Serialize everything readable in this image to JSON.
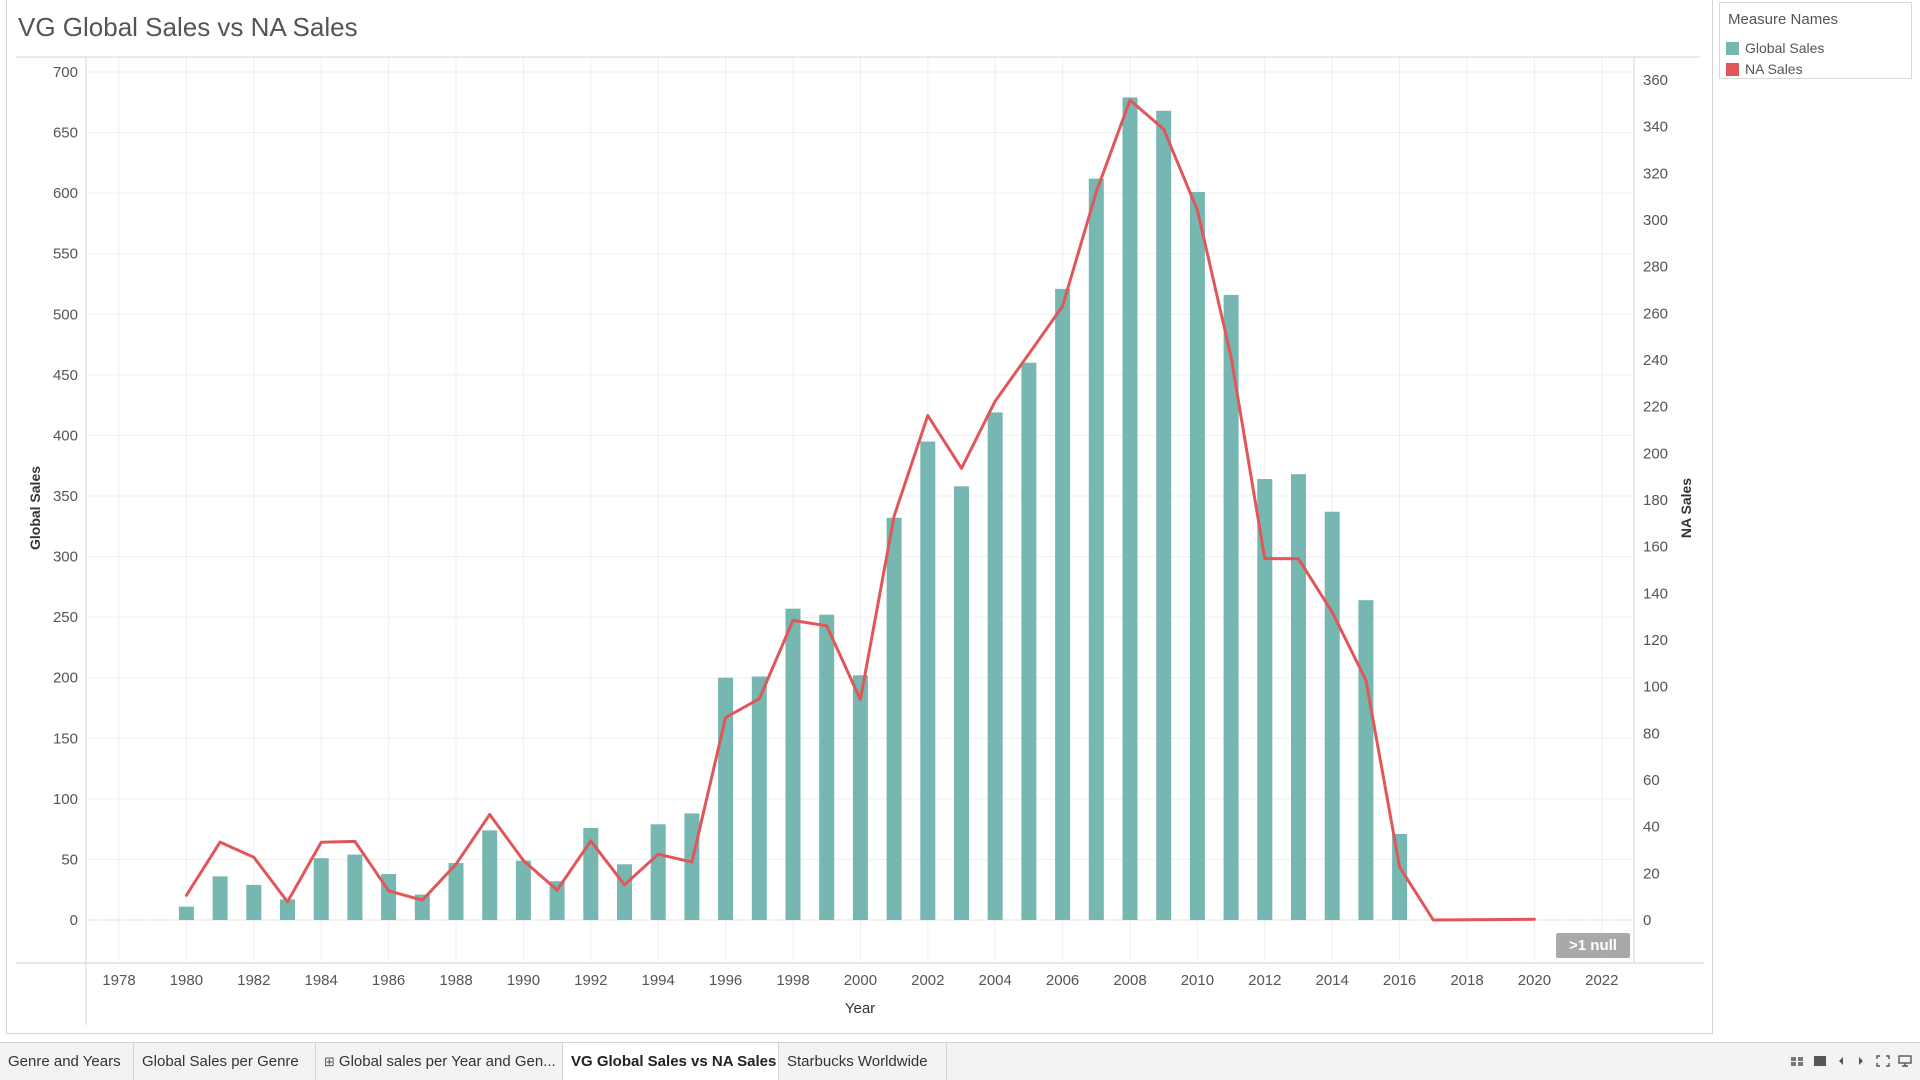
{
  "title": "VG Global Sales vs NA Sales",
  "legend": {
    "title": "Measure Names",
    "items": [
      {
        "label": "Global Sales",
        "color": "#76b7b2"
      },
      {
        "label": "NA Sales",
        "color": "#e15759"
      }
    ]
  },
  "null_indicator": ">1 null",
  "tabs": [
    {
      "label": "Genre and Years",
      "icon": ""
    },
    {
      "label": "Global Sales per Genre",
      "icon": ""
    },
    {
      "label": "Global sales per Year and Gen...",
      "icon": "crosstab-icon"
    },
    {
      "label": "VG Global Sales vs NA Sales",
      "icon": "",
      "active": true
    },
    {
      "label": "Starbucks Worldwide",
      "icon": ""
    }
  ],
  "controls": [
    "grid-view-icon",
    "filmstrip-icon",
    "prev-sheet-icon",
    "next-sheet-icon",
    "fullscreen-icon",
    "present-icon"
  ],
  "chart_data": {
    "type": "bar",
    "title": "VG Global Sales vs NA Sales",
    "xlabel": "Year",
    "ylabel_left": "Global Sales",
    "ylabel_right": "NA Sales",
    "x_ticks": [
      1978,
      1980,
      1982,
      1984,
      1986,
      1988,
      1990,
      1992,
      1994,
      1996,
      1998,
      2000,
      2002,
      2004,
      2006,
      2008,
      2010,
      2012,
      2014,
      2016,
      2018,
      2020,
      2022
    ],
    "xlim": [
      1977,
      2023
    ],
    "y_left_ticks": [
      0,
      50,
      100,
      150,
      200,
      250,
      300,
      350,
      400,
      450,
      500,
      550,
      600,
      650,
      700
    ],
    "y_right_ticks": [
      0,
      20,
      40,
      60,
      80,
      100,
      120,
      140,
      160,
      180,
      200,
      220,
      240,
      260,
      280,
      300,
      320,
      340,
      360
    ],
    "grid": true,
    "series": [
      {
        "name": "Global Sales",
        "type": "bar",
        "axis": "left",
        "color": "#76b7b2",
        "points": [
          [
            1980,
            11
          ],
          [
            1981,
            36
          ],
          [
            1982,
            29
          ],
          [
            1983,
            17
          ],
          [
            1984,
            51
          ],
          [
            1985,
            54
          ],
          [
            1986,
            38
          ],
          [
            1987,
            21
          ],
          [
            1988,
            47
          ],
          [
            1989,
            74
          ],
          [
            1990,
            49
          ],
          [
            1991,
            32
          ],
          [
            1992,
            76
          ],
          [
            1993,
            46
          ],
          [
            1994,
            79
          ],
          [
            1995,
            88
          ],
          [
            1996,
            200
          ],
          [
            1997,
            201
          ],
          [
            1998,
            257
          ],
          [
            1999,
            252
          ],
          [
            2000,
            202
          ],
          [
            2001,
            332
          ],
          [
            2002,
            395
          ],
          [
            2003,
            358
          ],
          [
            2004,
            419
          ],
          [
            2005,
            460
          ],
          [
            2006,
            521
          ],
          [
            2007,
            612
          ],
          [
            2008,
            679
          ],
          [
            2009,
            668
          ],
          [
            2010,
            601
          ],
          [
            2011,
            516
          ],
          [
            2012,
            364
          ],
          [
            2013,
            368
          ],
          [
            2014,
            337
          ],
          [
            2015,
            264
          ],
          [
            2016,
            71
          ]
        ]
      },
      {
        "name": "NA Sales",
        "type": "line",
        "axis": "right",
        "color": "#e15759",
        "points": [
          [
            1980,
            10.6
          ],
          [
            1981,
            33.4
          ],
          [
            1982,
            26.9
          ],
          [
            1983,
            7.8
          ],
          [
            1984,
            33.3
          ],
          [
            1985,
            33.7
          ],
          [
            1986,
            12.5
          ],
          [
            1987,
            8.5
          ],
          [
            1988,
            23.9
          ],
          [
            1989,
            45.2
          ],
          [
            1990,
            25.5
          ],
          [
            1991,
            12.8
          ],
          [
            1992,
            33.9
          ],
          [
            1993,
            15.1
          ],
          [
            1994,
            28.2
          ],
          [
            1995,
            24.8
          ],
          [
            1996,
            86.8
          ],
          [
            1997,
            94.8
          ],
          [
            1998,
            128.4
          ],
          [
            1999,
            126.1
          ],
          [
            2000,
            94.5
          ],
          [
            2001,
            173.1
          ],
          [
            2002,
            216.2
          ],
          [
            2003,
            193.6
          ],
          [
            2004,
            222.4
          ],
          [
            2005,
            242.6
          ],
          [
            2006,
            263.1
          ],
          [
            2007,
            312.1
          ],
          [
            2008,
            351.4
          ],
          [
            2009,
            338.9
          ],
          [
            2010,
            304.2
          ],
          [
            2011,
            241.2
          ],
          [
            2012,
            154.9
          ],
          [
            2013,
            154.8
          ],
          [
            2014,
            131.9
          ],
          [
            2015,
            102.8
          ],
          [
            2016,
            22.7
          ],
          [
            2017,
            0.0
          ],
          [
            2020,
            0.3
          ]
        ]
      }
    ]
  }
}
